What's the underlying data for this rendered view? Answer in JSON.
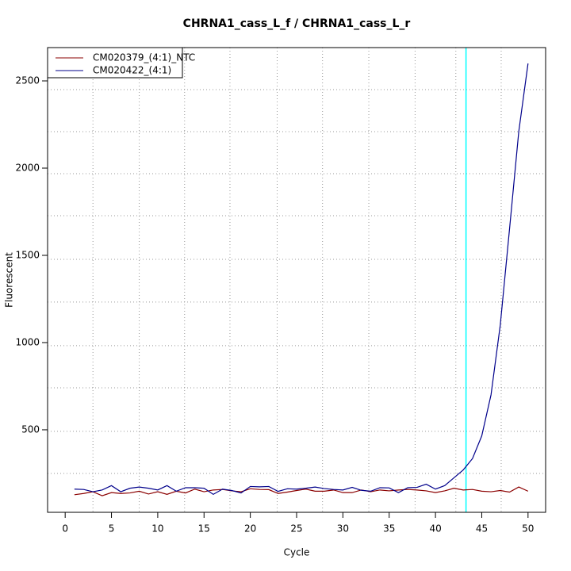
{
  "chart_data": {
    "type": "line",
    "title": "CHRNA1_cass_L_f / CHRNA1_cass_L_r",
    "x_label": "Cycle",
    "y_label": "Fluorescent",
    "x": [
      1,
      2,
      3,
      4,
      5,
      6,
      7,
      8,
      9,
      10,
      11,
      12,
      13,
      14,
      15,
      16,
      17,
      18,
      19,
      20,
      21,
      22,
      23,
      24,
      25,
      26,
      27,
      28,
      29,
      30,
      31,
      32,
      33,
      34,
      35,
      36,
      37,
      38,
      39,
      40,
      41,
      42,
      43,
      44,
      45,
      46,
      47,
      48,
      49,
      50
    ],
    "series": [
      {
        "name": "CM020379_(4:1)_NTC",
        "color": "#8b0000",
        "values": [
          128,
          135,
          145,
          122,
          140,
          135,
          138,
          148,
          132,
          145,
          130,
          148,
          138,
          160,
          145,
          155,
          158,
          150,
          145,
          162,
          158,
          157,
          135,
          143,
          152,
          160,
          148,
          148,
          155,
          140,
          140,
          155,
          145,
          155,
          150,
          155,
          158,
          155,
          150,
          140,
          150,
          165,
          155,
          158,
          148,
          145,
          152,
          143,
          172,
          148
        ]
      },
      {
        "name": "CM020422_(4:1)",
        "color": "#00008b",
        "values": [
          160,
          158,
          145,
          155,
          180,
          145,
          165,
          172,
          165,
          155,
          180,
          148,
          168,
          168,
          165,
          130,
          160,
          152,
          138,
          175,
          173,
          175,
          147,
          162,
          160,
          165,
          172,
          163,
          158,
          155,
          170,
          153,
          148,
          168,
          167,
          140,
          168,
          170,
          188,
          160,
          180,
          225,
          270,
          335,
          465,
          700,
          1100,
          1650,
          2210,
          2600
        ]
      }
    ],
    "xlim": [
      -1.9,
      51.9
    ],
    "xticks": [
      0,
      5,
      10,
      15,
      20,
      25,
      30,
      35,
      40,
      45,
      50
    ],
    "ylim": [
      27,
      2691
    ],
    "yticks": [
      500,
      1000,
      1500,
      2000,
      2500
    ],
    "xgrid": [
      3,
      8,
      12.9,
      17.8,
      22.9,
      27.8,
      32.8,
      37.8,
      42.2,
      47.1
    ],
    "ygrid": [
      250,
      491,
      741,
      982,
      1232,
      1477,
      1727,
      1968,
      2209,
      2450
    ],
    "threshold": {
      "x": 43.3,
      "color": "#00ffff"
    },
    "legend": "topleft"
  }
}
